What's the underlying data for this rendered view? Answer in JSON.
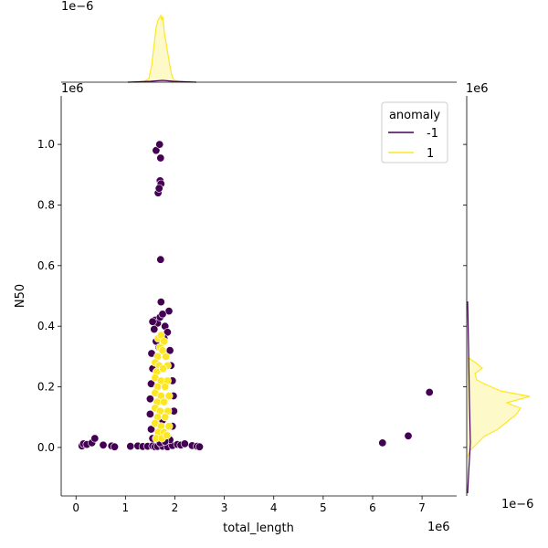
{
  "chart_data": {
    "type": "scatter",
    "title": "",
    "xlabel": "total_length",
    "ylabel": "N50",
    "xlim": [
      -0.3,
      7.7
    ],
    "ylim": [
      -0.16,
      1.16
    ],
    "x_multiplier": "1e6",
    "y_multiplier": "1e6",
    "x_ticks": [
      "0",
      "1",
      "2",
      "3",
      "4",
      "5",
      "6",
      "7"
    ],
    "y_ticks": [
      "0.0",
      "0.2",
      "0.4",
      "0.6",
      "0.8",
      "1.0"
    ],
    "x_tick_values": [
      0,
      1,
      2,
      3,
      4,
      5,
      6,
      7
    ],
    "y_tick_values": [
      0.0,
      0.2,
      0.4,
      0.6,
      0.8,
      1.0
    ],
    "legend": {
      "title": "anomaly",
      "placement": "top-right",
      "entries": [
        {
          "label": "-1",
          "color": "#440154"
        },
        {
          "label": "1",
          "color": "#fde725"
        }
      ]
    },
    "marginal_x_multiplier": "1e−6",
    "marginal_y_multiplier": "1e−6",
    "series": [
      {
        "name": "-1",
        "color": "#440154",
        "points": [
          [
            0.12,
            0.005
          ],
          [
            0.15,
            0.012
          ],
          [
            0.22,
            0.01
          ],
          [
            0.32,
            0.015
          ],
          [
            0.38,
            0.03
          ],
          [
            0.55,
            0.008
          ],
          [
            0.72,
            0.005
          ],
          [
            0.78,
            0.002
          ],
          [
            1.1,
            0.004
          ],
          [
            1.25,
            0.005
          ],
          [
            1.35,
            0.003
          ],
          [
            1.45,
            0.004
          ],
          [
            1.55,
            0.005
          ],
          [
            1.6,
            0.002
          ],
          [
            1.65,
            0.003
          ],
          [
            1.75,
            0.004
          ],
          [
            1.85,
            0.002
          ],
          [
            1.95,
            0.006
          ],
          [
            2.05,
            0.01
          ],
          [
            2.12,
            0.008
          ],
          [
            2.2,
            0.012
          ],
          [
            2.35,
            0.006
          ],
          [
            2.45,
            0.004
          ],
          [
            2.5,
            0.002
          ],
          [
            1.62,
            0.98
          ],
          [
            1.69,
            1.0
          ],
          [
            1.71,
            0.955
          ],
          [
            1.66,
            0.84
          ],
          [
            1.7,
            0.88
          ],
          [
            1.72,
            0.87
          ],
          [
            1.68,
            0.855
          ],
          [
            1.71,
            0.62
          ],
          [
            1.72,
            0.48
          ],
          [
            1.88,
            0.45
          ],
          [
            1.6,
            0.42
          ],
          [
            1.65,
            0.41
          ],
          [
            1.7,
            0.43
          ],
          [
            1.75,
            0.44
          ],
          [
            1.55,
            0.415
          ],
          [
            1.58,
            0.39
          ],
          [
            1.8,
            0.4
          ],
          [
            1.85,
            0.38
          ],
          [
            1.62,
            0.35
          ],
          [
            1.68,
            0.33
          ],
          [
            1.78,
            0.36
          ],
          [
            1.53,
            0.31
          ],
          [
            1.9,
            0.32
          ],
          [
            1.55,
            0.26
          ],
          [
            1.92,
            0.27
          ],
          [
            1.52,
            0.21
          ],
          [
            1.95,
            0.22
          ],
          [
            1.5,
            0.16
          ],
          [
            1.97,
            0.17
          ],
          [
            1.5,
            0.11
          ],
          [
            1.98,
            0.12
          ],
          [
            1.52,
            0.06
          ],
          [
            1.95,
            0.07
          ],
          [
            1.55,
            0.03
          ],
          [
            1.9,
            0.025
          ],
          [
            1.75,
            0.09
          ],
          [
            1.7,
            0.015
          ],
          [
            1.8,
            0.02
          ],
          [
            6.2,
            0.015
          ],
          [
            6.72,
            0.038
          ],
          [
            7.15,
            0.182
          ]
        ]
      },
      {
        "name": "1",
        "color": "#fde725",
        "points": [
          [
            1.66,
            0.36
          ],
          [
            1.72,
            0.37
          ],
          [
            1.78,
            0.35
          ],
          [
            1.7,
            0.33
          ],
          [
            1.75,
            0.32
          ],
          [
            1.65,
            0.3
          ],
          [
            1.82,
            0.3
          ],
          [
            1.6,
            0.28
          ],
          [
            1.68,
            0.27
          ],
          [
            1.85,
            0.27
          ],
          [
            1.63,
            0.25
          ],
          [
            1.76,
            0.26
          ],
          [
            1.6,
            0.23
          ],
          [
            1.72,
            0.22
          ],
          [
            1.85,
            0.22
          ],
          [
            1.65,
            0.2
          ],
          [
            1.8,
            0.2
          ],
          [
            1.6,
            0.18
          ],
          [
            1.72,
            0.17
          ],
          [
            1.88,
            0.17
          ],
          [
            1.64,
            0.15
          ],
          [
            1.78,
            0.15
          ],
          [
            1.6,
            0.13
          ],
          [
            1.7,
            0.12
          ],
          [
            1.86,
            0.12
          ],
          [
            1.65,
            0.1
          ],
          [
            1.8,
            0.1
          ],
          [
            1.6,
            0.08
          ],
          [
            1.72,
            0.07
          ],
          [
            1.88,
            0.07
          ],
          [
            1.66,
            0.05
          ],
          [
            1.78,
            0.05
          ],
          [
            1.62,
            0.03
          ],
          [
            1.74,
            0.03
          ],
          [
            1.84,
            0.04
          ]
        ]
      }
    ]
  }
}
